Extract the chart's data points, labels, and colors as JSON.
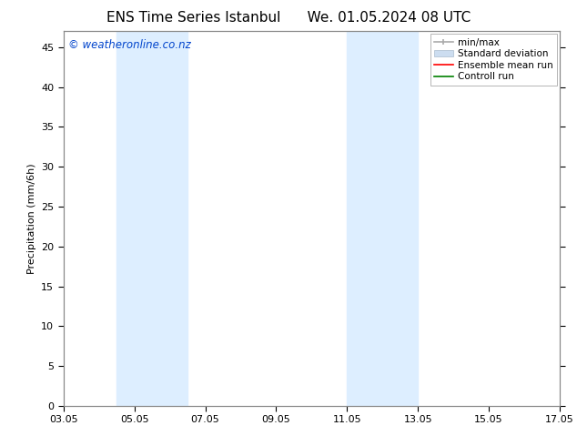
{
  "title_left": "ENS Time Series Istanbul",
  "title_right": "We. 01.05.2024 08 UTC",
  "ylabel": "Precipitation (mm/6h)",
  "ylim": [
    0,
    47
  ],
  "yticks": [
    0,
    5,
    10,
    15,
    20,
    25,
    30,
    35,
    40,
    45
  ],
  "xtick_labels": [
    "03.05",
    "05.05",
    "07.05",
    "09.05",
    "11.05",
    "13.05",
    "15.05",
    "17.05"
  ],
  "xtick_positions": [
    0,
    2,
    4,
    6,
    8,
    10,
    12,
    14
  ],
  "xlim": [
    0,
    14
  ],
  "shaded_bands": [
    {
      "x_start": 1.5,
      "x_end": 3.5
    },
    {
      "x_start": 8.0,
      "x_end": 10.0
    }
  ],
  "shaded_color": "#ddeeff",
  "copyright_text": "© weatheronline.co.nz",
  "copyright_color": "#0044cc",
  "bg_color": "#ffffff",
  "legend_fontsize": 7.5,
  "title_fontsize": 11,
  "axis_label_fontsize": 8,
  "tick_fontsize": 8
}
